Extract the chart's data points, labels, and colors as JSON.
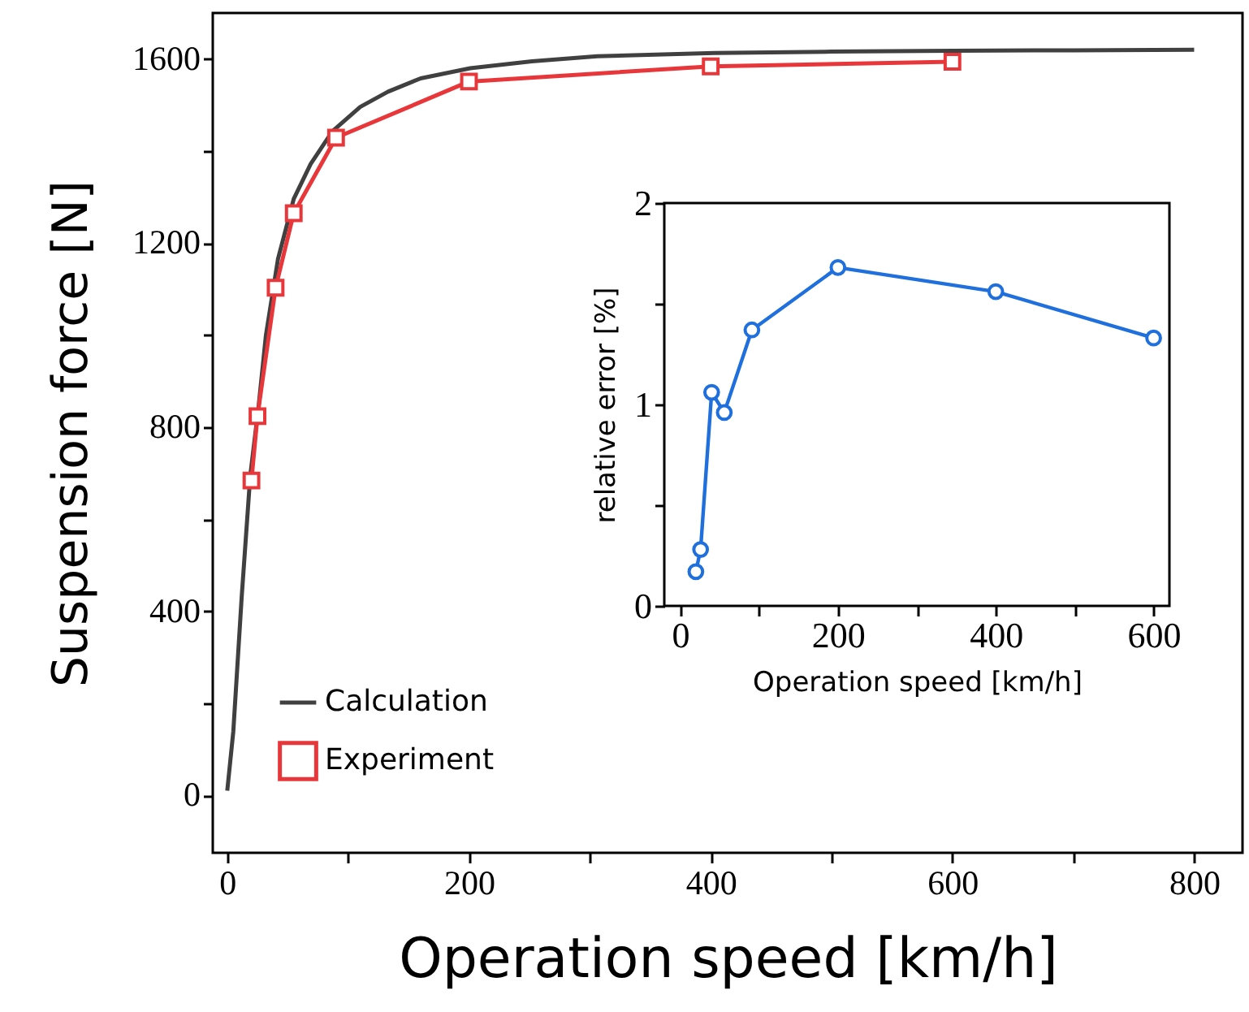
{
  "chart_data": [
    {
      "type": "line",
      "xlabel": "Operation speed [km/h]",
      "ylabel": "Suspension force [N]",
      "xlim": [
        -12,
        840
      ],
      "ylim": [
        -125,
        1700
      ],
      "xticks": [
        0,
        {
          "value": 100,
          "label": null
        },
        200,
        {
          "value": 300,
          "label": null
        },
        400,
        {
          "value": 500,
          "label": null
        },
        600,
        {
          "value": 700,
          "label": null
        },
        800
      ],
      "yticks": [
        0,
        {
          "value": 200,
          "label": null
        },
        400,
        {
          "value": 600,
          "label": null
        },
        800,
        {
          "value": 1000,
          "label": null
        },
        1200,
        {
          "value": 1400,
          "label": null
        },
        1600
      ],
      "legend": "bottom left",
      "grid": false,
      "line_style": "solid",
      "series": [
        {
          "name": "Calculation",
          "color": "#404040",
          "marker": "none",
          "x": [
            0,
            5,
            12,
            19,
            26,
            32,
            42,
            55,
            69,
            87,
            110,
            133,
            160,
            201,
            252,
            306,
            403,
            500,
            600,
            700,
            800
          ],
          "values": [
            10,
            139,
            434,
            694,
            847,
            1000,
            1166,
            1296,
            1372,
            1443,
            1496,
            1529,
            1558,
            1580,
            1595,
            1606,
            1613,
            1616,
            1618,
            1619,
            1620
          ]
        },
        {
          "name": "Experiment",
          "color": "#e8373a",
          "marker": "square",
          "x": [
            20,
            25,
            40,
            55,
            90,
            200,
            400,
            600
          ],
          "values": [
            684,
            824,
            1103,
            1265,
            1429,
            1551,
            1584,
            1594
          ]
        }
      ]
    },
    {
      "type": "line",
      "xlabel": "Operation speed [km/h]",
      "ylabel": "relative error [%]",
      "xlim": [
        -20,
        620
      ],
      "ylim": [
        0,
        2
      ],
      "xticks": [
        0,
        {
          "value": 100,
          "label": null
        },
        200,
        {
          "value": 300,
          "label": null
        },
        400,
        {
          "value": 500,
          "label": null
        },
        600
      ],
      "yticks": [
        0,
        {
          "value": 0.5,
          "label": null
        },
        1,
        {
          "value": 1.5,
          "label": null
        },
        2
      ],
      "legend": false,
      "grid": false,
      "line_style": "solid",
      "marker": "circle",
      "series": [
        {
          "color": "#1f6fdc",
          "x": [
            20,
            26,
            40,
            56,
            91,
            200,
            400,
            600
          ],
          "values": [
            0.17,
            0.28,
            1.06,
            0.96,
            1.37,
            1.68,
            1.56,
            1.33
          ]
        }
      ]
    }
  ]
}
